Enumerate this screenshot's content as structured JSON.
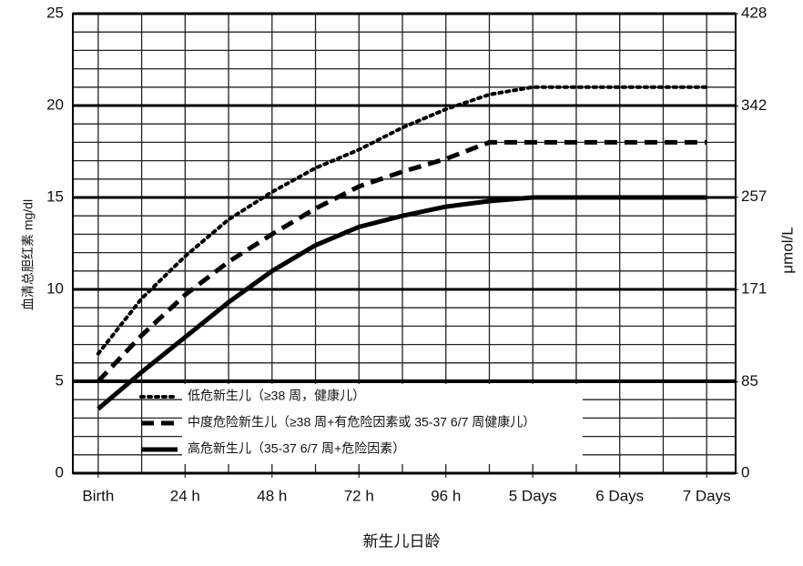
{
  "chart_data": {
    "type": "line",
    "x_label": "新生儿日龄",
    "y_label": "血清总胆红素 mg/dl",
    "y2_label": "μmol/L",
    "xlim": [
      -7,
      176
    ],
    "xticks": [
      {
        "value": 0,
        "label": "Birth"
      },
      {
        "value": 24,
        "label": "24 h"
      },
      {
        "value": 48,
        "label": "48 h"
      },
      {
        "value": 72,
        "label": "72 h"
      },
      {
        "value": 96,
        "label": "96 h"
      },
      {
        "value": 120,
        "label": "5 Days"
      },
      {
        "value": 144,
        "label": "6 Days"
      },
      {
        "value": 168,
        "label": "7 Days"
      }
    ],
    "ylim": [
      0,
      25
    ],
    "yticks": [
      0,
      5,
      10,
      15,
      20,
      25
    ],
    "y2lim": [
      0,
      428
    ],
    "y2ticks": [
      0,
      85,
      171,
      257,
      342,
      428
    ],
    "grid": true,
    "grid_step_x": 12,
    "grid_step_y": 1,
    "legend": "lower-left",
    "x": [
      0,
      12,
      24,
      36,
      48,
      60,
      72,
      84,
      96,
      108,
      120,
      144,
      168
    ],
    "series": [
      {
        "name": "低危新生儿（≥38 周，健康儿）",
        "color": "#000000",
        "style": "dotted",
        "values": [
          6.5,
          9.5,
          11.8,
          13.8,
          15.3,
          16.6,
          17.6,
          18.8,
          19.8,
          20.6,
          21,
          21,
          21
        ]
      },
      {
        "name": "中度危险新生儿（≥38 周+有危险因素或 35-37 6/7 周健康儿）",
        "color": "#000000",
        "style": "dashed",
        "values": [
          5.0,
          7.5,
          9.7,
          11.5,
          13.0,
          14.4,
          15.6,
          16.4,
          17.1,
          18,
          18,
          18,
          18
        ]
      },
      {
        "name": "高危新生儿（35-37 6/7 周+危险因素）",
        "color": "#000000",
        "style": "solid",
        "values": [
          3.5,
          5.5,
          7.4,
          9.3,
          11.0,
          12.4,
          13.4,
          14.0,
          14.5,
          14.8,
          15,
          15,
          15
        ]
      }
    ]
  }
}
